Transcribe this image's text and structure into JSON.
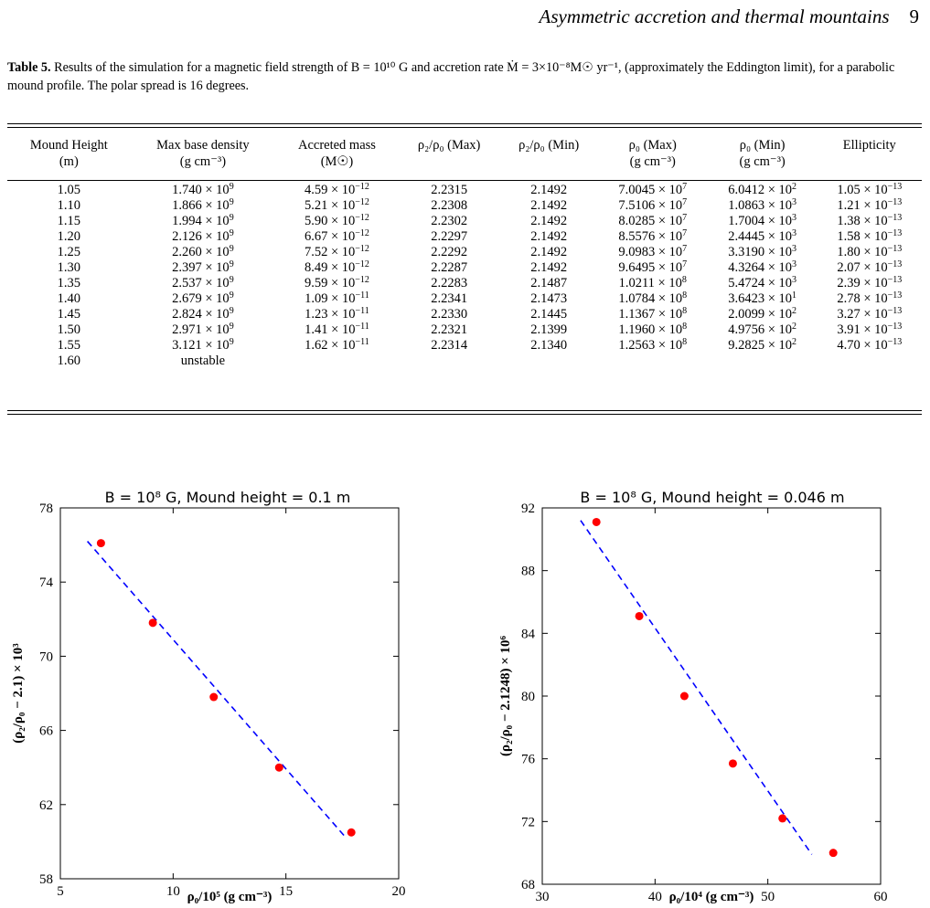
{
  "header": {
    "running_title": "Asymmetric accretion and thermal mountains",
    "page_number": "9"
  },
  "caption": {
    "label": "Table 5.",
    "text": "Results of the simulation for a magnetic field strength of B = 10¹⁰ G and accretion rate Ṁ = 3×10⁻⁸M☉ yr⁻¹, (approximately the Eddington limit), for a parabolic mound profile. The polar spread is 16 degrees."
  },
  "table": {
    "columns": [
      [
        "Mound Height",
        "(m)"
      ],
      [
        "Max base density",
        "(g cm⁻³)"
      ],
      [
        "Accreted mass",
        "(M☉)"
      ],
      [
        "ρ₂/ρ₀ (Max)",
        ""
      ],
      [
        "ρ₂/ρ₀ (Min)",
        ""
      ],
      [
        "ρ₀ (Max)",
        "(g cm⁻³)"
      ],
      [
        "ρ₀ (Min)",
        "(g cm⁻³)"
      ],
      [
        "Ellipticity",
        ""
      ]
    ],
    "rows": [
      [
        "1.05",
        "1.740 × 10^9",
        "4.59 × 10^−12",
        "2.2315",
        "2.1492",
        "7.0045 × 10^7",
        "6.0412 × 10^2",
        "1.05 × 10^−13"
      ],
      [
        "1.10",
        "1.866 × 10^9",
        "5.21 × 10^−12",
        "2.2308",
        "2.1492",
        "7.5106 × 10^7",
        "1.0863 × 10^3",
        "1.21 × 10^−13"
      ],
      [
        "1.15",
        "1.994 × 10^9",
        "5.90 × 10^−12",
        "2.2302",
        "2.1492",
        "8.0285 × 10^7",
        "1.7004 × 10^3",
        "1.38 × 10^−13"
      ],
      [
        "1.20",
        "2.126 × 10^9",
        "6.67 × 10^−12",
        "2.2297",
        "2.1492",
        "8.5576 × 10^7",
        "2.4445 × 10^3",
        "1.58 × 10^−13"
      ],
      [
        "1.25",
        "2.260 × 10^9",
        "7.52 × 10^−12",
        "2.2292",
        "2.1492",
        "9.0983 × 10^7",
        "3.3190 × 10^3",
        "1.80 × 10^−13"
      ],
      [
        "1.30",
        "2.397 × 10^9",
        "8.49 × 10^−12",
        "2.2287",
        "2.1492",
        "9.6495 × 10^7",
        "4.3264 × 10^3",
        "2.07 × 10^−13"
      ],
      [
        "1.35",
        "2.537 × 10^9",
        "9.59 × 10^−12",
        "2.2283",
        "2.1487",
        "1.0211 × 10^8",
        "5.4724 × 10^3",
        "2.39 × 10^−13"
      ],
      [
        "1.40",
        "2.679 × 10^9",
        "1.09 × 10^−11",
        "2.2341",
        "2.1473",
        "1.0784 × 10^8",
        "3.6423 × 10^1",
        "2.78 × 10^−13"
      ],
      [
        "1.45",
        "2.824 × 10^9",
        "1.23 × 10^−11",
        "2.2330",
        "2.1445",
        "1.1367 × 10^8",
        "2.0099 × 10^2",
        "3.27 × 10^−13"
      ],
      [
        "1.50",
        "2.971 × 10^9",
        "1.41 × 10^−11",
        "2.2321",
        "2.1399",
        "1.1960 × 10^8",
        "4.9756 × 10^2",
        "3.91 × 10^−13"
      ],
      [
        "1.55",
        "3.121 × 10^9",
        "1.62 × 10^−11",
        "2.2314",
        "2.1340",
        "1.2563 × 10^8",
        "9.2825 × 10^2",
        "4.70 × 10^−13"
      ],
      [
        "1.60",
        "unstable",
        "",
        "",
        "",
        "",
        "",
        ""
      ]
    ]
  },
  "chart_data": [
    {
      "type": "scatter",
      "title": "B = 10⁸ G, Mound height = 0.1 m",
      "xlabel": "ρ₀/10⁵ (g cm⁻³)",
      "ylabel": "(ρ₂/ρ₀ − 2.1) × 10³",
      "xlim": [
        5,
        20
      ],
      "ylim": [
        58,
        78
      ],
      "xticks": [
        5,
        10,
        15,
        20
      ],
      "yticks": [
        58,
        62,
        66,
        70,
        74,
        78
      ],
      "points": [
        [
          6.8,
          76.1
        ],
        [
          9.1,
          71.8
        ],
        [
          11.8,
          67.8
        ],
        [
          14.7,
          64.0
        ],
        [
          17.9,
          60.5
        ]
      ],
      "fit_line": [
        [
          6.2,
          76.2
        ],
        [
          17.6,
          60.3
        ]
      ],
      "point_color": "#ff0000",
      "line_color": "#0000ff",
      "grid": false
    },
    {
      "type": "scatter",
      "title": "B = 10⁸ G, Mound height = 0.046 m",
      "xlabel": "ρ₀/10⁴ (g cm⁻³)",
      "ylabel": "(ρ₂/ρ₀ − 2.1248) × 10⁶",
      "xlim": [
        30,
        60
      ],
      "ylim": [
        68,
        92
      ],
      "xticks": [
        30,
        40,
        50,
        60
      ],
      "yticks": [
        68,
        72,
        76,
        80,
        84,
        88,
        92
      ],
      "points": [
        [
          34.8,
          91.1
        ],
        [
          38.6,
          85.1
        ],
        [
          42.6,
          80.0
        ],
        [
          46.9,
          75.7
        ],
        [
          51.3,
          72.2
        ],
        [
          55.8,
          70.0
        ]
      ],
      "fit_line": [
        [
          33.4,
          91.2
        ],
        [
          53.9,
          69.9
        ]
      ],
      "point_color": "#ff0000",
      "line_color": "#0000ff",
      "grid": false
    }
  ]
}
